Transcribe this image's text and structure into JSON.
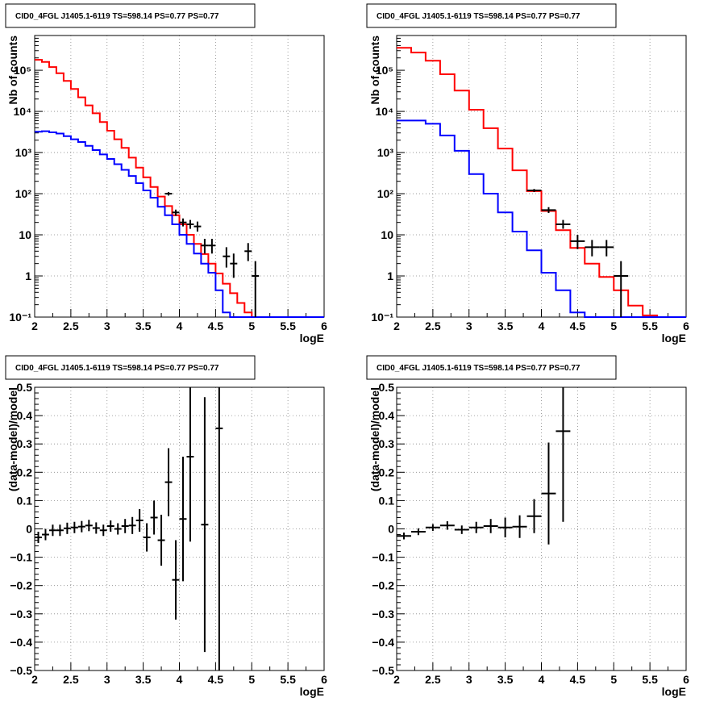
{
  "chart_data": [
    {
      "type": "line",
      "title": "CID0_4FGL J1405.1-6119 TS=598.14 PS=0.77 PS=0.77",
      "xlabel": "logE",
      "ylabel": "Nb of counts",
      "xlim": [
        2,
        6
      ],
      "ylim": [
        0.1,
        700000
      ],
      "yscale": "log",
      "grid": true,
      "xticks": [
        "2",
        "2.5",
        "3",
        "3.5",
        "4",
        "4.5",
        "5",
        "5.5",
        "6"
      ],
      "yticks": [
        {
          "value": 0.1,
          "label": "10⁻¹"
        },
        {
          "value": 1,
          "label": "1"
        },
        {
          "value": 10,
          "label": "10"
        },
        {
          "value": 100,
          "label": "10²"
        },
        {
          "value": 1000,
          "label": "10³"
        },
        {
          "value": 10000,
          "label": "10⁴"
        },
        {
          "value": 100000,
          "label": "10⁵"
        }
      ],
      "bin_edges": [
        2.0,
        2.1,
        2.2,
        2.3,
        2.4,
        2.5,
        2.6,
        2.7,
        2.8,
        2.9,
        3.0,
        3.1,
        3.2,
        3.3,
        3.4,
        3.5,
        3.6,
        3.7,
        3.8,
        3.9,
        4.0,
        4.1,
        4.2,
        4.3,
        4.4,
        4.5,
        4.6,
        4.7,
        4.8,
        4.9,
        5.0,
        5.1,
        5.2,
        5.3,
        5.4,
        5.5,
        5.6,
        5.7,
        5.8,
        5.9,
        6.0
      ],
      "series": [
        {
          "color": "#ff0000",
          "values": [
            180000,
            160000,
            120000,
            85000,
            55000,
            35000,
            22000,
            14000,
            9000,
            5500,
            3400,
            2100,
            1300,
            750,
            430,
            250,
            145,
            85,
            50,
            30,
            18,
            10,
            6,
            3.4,
            2.0,
            1.15,
            0.65,
            0.38,
            0.22,
            0.13,
            0.1,
            0.1,
            0.1,
            0.1,
            0.1,
            0.1,
            0.1,
            0.1,
            0.1,
            0.1
          ]
        },
        {
          "color": "#0000ff",
          "values": [
            3200,
            3300,
            3100,
            2900,
            2500,
            2100,
            1800,
            1450,
            1150,
            900,
            700,
            520,
            380,
            270,
            180,
            120,
            80,
            48,
            30,
            18,
            10,
            6,
            3.5,
            2.0,
            1.2,
            0.45,
            0.13,
            0.1,
            0.1,
            0.1,
            0.1,
            0.1,
            0.1,
            0.1,
            0.1,
            0.1,
            0.1,
            0.1,
            0.1,
            0.1
          ]
        }
      ],
      "data_points": [
        {
          "x": 3.85,
          "y": 100,
          "ylo": 90,
          "yhi": 110
        },
        {
          "x": 3.95,
          "y": 35,
          "ylo": 29,
          "yhi": 41
        },
        {
          "x": 4.05,
          "y": 20,
          "ylo": 16,
          "yhi": 25
        },
        {
          "x": 4.15,
          "y": 18,
          "ylo": 14,
          "yhi": 23
        },
        {
          "x": 4.25,
          "y": 16,
          "ylo": 12,
          "yhi": 21
        },
        {
          "x": 4.35,
          "y": 5.5,
          "ylo": 3.5,
          "yhi": 8
        },
        {
          "x": 4.45,
          "y": 5.5,
          "ylo": 3.5,
          "yhi": 8
        },
        {
          "x": 4.65,
          "y": 3,
          "ylo": 1.6,
          "yhi": 5
        },
        {
          "x": 4.75,
          "y": 2,
          "ylo": 0.9,
          "yhi": 3.5
        },
        {
          "x": 4.95,
          "y": 4,
          "ylo": 2.3,
          "yhi": 6.3
        },
        {
          "x": 5.05,
          "y": 1,
          "ylo": 0.1,
          "yhi": 2.3
        }
      ]
    },
    {
      "type": "line",
      "title": "CID0_4FGL J1405.1-6119 TS=598.14 PS=0.77 PS=0.77",
      "xlabel": "logE",
      "ylabel": "Nb of counts",
      "xlim": [
        2,
        6
      ],
      "ylim": [
        0.1,
        700000
      ],
      "yscale": "log",
      "grid": true,
      "xticks": [
        "2",
        "2.5",
        "3",
        "3.5",
        "4",
        "4.5",
        "5",
        "5.5",
        "6"
      ],
      "yticks": [
        {
          "value": 0.1,
          "label": "10⁻¹"
        },
        {
          "value": 1,
          "label": "1"
        },
        {
          "value": 10,
          "label": "10"
        },
        {
          "value": 100,
          "label": "10²"
        },
        {
          "value": 1000,
          "label": "10³"
        },
        {
          "value": 10000,
          "label": "10⁴"
        },
        {
          "value": 100000,
          "label": "10⁵"
        }
      ],
      "bin_edges": [
        2.0,
        2.2,
        2.4,
        2.6,
        2.8,
        3.0,
        3.2,
        3.4,
        3.6,
        3.8,
        4.0,
        4.2,
        4.4,
        4.6,
        4.8,
        5.0,
        5.2,
        5.4,
        5.6,
        5.8,
        6.0
      ],
      "series": [
        {
          "color": "#ff0000",
          "values": [
            350000,
            270000,
            170000,
            80000,
            32000,
            11000,
            3900,
            1250,
            370,
            115,
            38,
            13,
            4.8,
            2.0,
            0.95,
            0.45,
            0.19,
            0.11,
            0.1,
            0.1
          ]
        },
        {
          "color": "#0000ff",
          "values": [
            6000,
            6000,
            5000,
            2600,
            1100,
            300,
            100,
            35,
            12,
            4.2,
            1.2,
            0.45,
            0.13,
            0.1,
            0.1,
            0.1,
            0.1,
            0.1,
            0.1,
            0.1
          ]
        }
      ],
      "data_points": [
        {
          "x": 3.9,
          "y": 120,
          "ylo": 110,
          "yhi": 130
        },
        {
          "x": 4.1,
          "y": 40,
          "ylo": 34,
          "yhi": 47
        },
        {
          "x": 4.3,
          "y": 18,
          "ylo": 14,
          "yhi": 23
        },
        {
          "x": 4.5,
          "y": 7,
          "ylo": 4.5,
          "yhi": 10
        },
        {
          "x": 4.7,
          "y": 5,
          "ylo": 3,
          "yhi": 7.5
        },
        {
          "x": 4.9,
          "y": 5,
          "ylo": 3,
          "yhi": 7.5
        },
        {
          "x": 5.1,
          "y": 1,
          "ylo": 0.1,
          "yhi": 2.3
        }
      ]
    },
    {
      "type": "scatter",
      "title": "CID0_4FGL J1405.1-6119 TS=598.14 PS=0.77 PS=0.77",
      "xlabel": "logE",
      "ylabel": "(data-model)/model",
      "xlim": [
        2,
        6
      ],
      "ylim": [
        -0.5,
        0.5
      ],
      "grid": true,
      "xticks": [
        "2",
        "2.5",
        "3",
        "3.5",
        "4",
        "4.5",
        "5",
        "5.5",
        "6"
      ],
      "yticks": [
        "−0.5",
        "−0.4",
        "−0.3",
        "−0.2",
        "−0.1",
        "0",
        "0.1",
        "0.2",
        "0.3",
        "0.4",
        "0.5"
      ],
      "xerr": 0.05,
      "points": [
        {
          "x": 2.05,
          "y": -0.03,
          "err": 0.02
        },
        {
          "x": 2.15,
          "y": -0.02,
          "err": 0.02
        },
        {
          "x": 2.25,
          "y": -0.005,
          "err": 0.02
        },
        {
          "x": 2.35,
          "y": -0.005,
          "err": 0.02
        },
        {
          "x": 2.45,
          "y": 0.002,
          "err": 0.02
        },
        {
          "x": 2.55,
          "y": 0.005,
          "err": 0.02
        },
        {
          "x": 2.65,
          "y": 0.008,
          "err": 0.02
        },
        {
          "x": 2.75,
          "y": 0.012,
          "err": 0.02
        },
        {
          "x": 2.85,
          "y": 0.003,
          "err": 0.02
        },
        {
          "x": 2.95,
          "y": -0.005,
          "err": 0.02
        },
        {
          "x": 3.05,
          "y": 0.01,
          "err": 0.02
        },
        {
          "x": 3.15,
          "y": 0.0,
          "err": 0.02
        },
        {
          "x": 3.25,
          "y": 0.01,
          "err": 0.025
        },
        {
          "x": 3.35,
          "y": 0.012,
          "err": 0.03
        },
        {
          "x": 3.45,
          "y": 0.03,
          "err": 0.04
        },
        {
          "x": 3.55,
          "y": -0.03,
          "err": 0.05
        },
        {
          "x": 3.65,
          "y": 0.04,
          "err": 0.06
        },
        {
          "x": 3.75,
          "y": -0.04,
          "err": 0.09
        },
        {
          "x": 3.85,
          "y": 0.165,
          "err": 0.12
        },
        {
          "x": 3.95,
          "y": -0.18,
          "err": 0.14
        },
        {
          "x": 4.05,
          "y": 0.035,
          "err": 0.22
        },
        {
          "x": 4.15,
          "y": 0.255,
          "err": 0.3
        },
        {
          "x": 4.35,
          "y": 0.015,
          "err": 0.45
        },
        {
          "x": 4.55,
          "y": 0.355,
          "err": 0.9
        }
      ]
    },
    {
      "type": "scatter",
      "title": "CID0_4FGL J1405.1-6119 TS=598.14 PS=0.77 PS=0.77",
      "xlabel": "logE",
      "ylabel": "(data-model)/model",
      "xlim": [
        2,
        6
      ],
      "ylim": [
        -0.5,
        0.5
      ],
      "grid": true,
      "xticks": [
        "2",
        "2.5",
        "3",
        "3.5",
        "4",
        "4.5",
        "5",
        "5.5",
        "6"
      ],
      "yticks": [
        "−0.5",
        "−0.4",
        "−0.3",
        "−0.2",
        "−0.1",
        "0",
        "0.1",
        "0.2",
        "0.3",
        "0.4",
        "0.5"
      ],
      "xerr": 0.1,
      "points": [
        {
          "x": 2.1,
          "y": -0.025,
          "err": 0.012
        },
        {
          "x": 2.3,
          "y": -0.01,
          "err": 0.012
        },
        {
          "x": 2.5,
          "y": 0.005,
          "err": 0.012
        },
        {
          "x": 2.7,
          "y": 0.012,
          "err": 0.015
        },
        {
          "x": 2.9,
          "y": -0.003,
          "err": 0.015
        },
        {
          "x": 3.1,
          "y": 0.005,
          "err": 0.02
        },
        {
          "x": 3.3,
          "y": 0.01,
          "err": 0.025
        },
        {
          "x": 3.5,
          "y": 0.005,
          "err": 0.035
        },
        {
          "x": 3.7,
          "y": 0.008,
          "err": 0.04
        },
        {
          "x": 3.9,
          "y": 0.045,
          "err": 0.06
        },
        {
          "x": 4.1,
          "y": 0.125,
          "err": 0.18
        },
        {
          "x": 4.3,
          "y": 0.345,
          "err": 0.32
        }
      ]
    }
  ]
}
